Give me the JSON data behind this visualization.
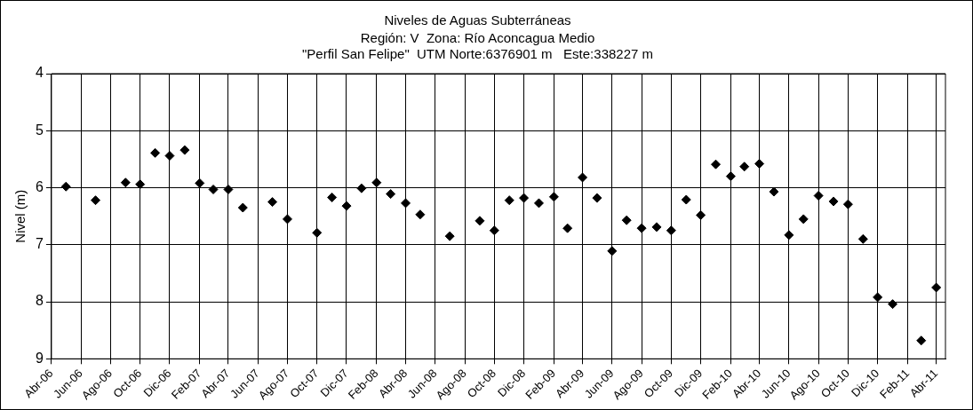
{
  "chart_data": {
    "type": "scatter",
    "title": "Niveles de Aguas Subterráneas",
    "subtitle": "Región: V  Zona: Río Aconcagua Medio\n\"Perfil San Felipe\"  UTM Norte:6376901 m   Este:338227 m",
    "ylabel": "Nivel (m)",
    "x": [
      "2006-05",
      "2006-07",
      "2006-09",
      "2006-10",
      "2006-11",
      "2006-12",
      "2007-01",
      "2007-02",
      "2007-03",
      "2007-04",
      "2007-05",
      "2007-07",
      "2007-08",
      "2007-10",
      "2007-11",
      "2007-12",
      "2008-01",
      "2008-02",
      "2008-03",
      "2008-04",
      "2008-05",
      "2008-07",
      "2008-09",
      "2008-10",
      "2008-11",
      "2008-12",
      "2009-01",
      "2009-02",
      "2009-03",
      "2009-04",
      "2009-05",
      "2009-06",
      "2009-07",
      "2009-08",
      "2009-09",
      "2009-10",
      "2009-11",
      "2009-12",
      "2010-01",
      "2010-02",
      "2010-03",
      "2010-04",
      "2010-05",
      "2010-06",
      "2010-07",
      "2010-08",
      "2010-09",
      "2010-10",
      "2010-11",
      "2010-12",
      "2011-01",
      "2011-03",
      "2011-04"
    ],
    "values": [
      5.98,
      6.22,
      5.91,
      5.94,
      5.39,
      5.44,
      5.34,
      5.92,
      6.03,
      6.03,
      6.35,
      6.25,
      6.55,
      6.79,
      6.17,
      6.32,
      6.01,
      5.91,
      6.11,
      6.27,
      6.47,
      6.85,
      6.58,
      6.75,
      6.22,
      6.18,
      6.27,
      6.16,
      6.71,
      5.82,
      6.18,
      7.11,
      6.57,
      6.71,
      6.69,
      6.75,
      6.21,
      6.48,
      5.59,
      5.8,
      5.63,
      5.58,
      6.07,
      6.83,
      6.55,
      6.14,
      6.24,
      6.29,
      6.9,
      7.92,
      8.04,
      8.68,
      7.75
    ],
    "color": "#000000",
    "marker": "diamond",
    "grid": true,
    "legend": false,
    "xlim": [
      "2006-04-01",
      "2011-04-20"
    ],
    "xticks": [
      {
        "value": "2006-04",
        "label": "Abr-06"
      },
      {
        "value": "2006-06",
        "label": "Jun-06"
      },
      {
        "value": "2006-08",
        "label": "Ago-06"
      },
      {
        "value": "2006-10",
        "label": "Oct-06"
      },
      {
        "value": "2006-12",
        "label": "Dic-06"
      },
      {
        "value": "2007-02",
        "label": "Feb-07"
      },
      {
        "value": "2007-04",
        "label": "Abr-07"
      },
      {
        "value": "2007-06",
        "label": "Jun-07"
      },
      {
        "value": "2007-08",
        "label": "Ago-07"
      },
      {
        "value": "2007-10",
        "label": "Oct-07"
      },
      {
        "value": "2007-12",
        "label": "Dic-07"
      },
      {
        "value": "2008-02",
        "label": "Feb-08"
      },
      {
        "value": "2008-04",
        "label": "Abr-08"
      },
      {
        "value": "2008-06",
        "label": "Jun-08"
      },
      {
        "value": "2008-08",
        "label": "Ago-08"
      },
      {
        "value": "2008-10",
        "label": "Oct-08"
      },
      {
        "value": "2008-12",
        "label": "Dic-08"
      },
      {
        "value": "2009-02",
        "label": "Feb-09"
      },
      {
        "value": "2009-04",
        "label": "Abr-09"
      },
      {
        "value": "2009-06",
        "label": "Jun-09"
      },
      {
        "value": "2009-08",
        "label": "Ago-09"
      },
      {
        "value": "2009-10",
        "label": "Oct-09"
      },
      {
        "value": "2009-12",
        "label": "Dic-09"
      },
      {
        "value": "2010-02",
        "label": "Feb-10"
      },
      {
        "value": "2010-04",
        "label": "Abr-10"
      },
      {
        "value": "2010-06",
        "label": "Jun-10"
      },
      {
        "value": "2010-08",
        "label": "Ago-10"
      },
      {
        "value": "2010-10",
        "label": "Oct-10"
      },
      {
        "value": "2010-12",
        "label": "Dic-10"
      },
      {
        "value": "2011-02",
        "label": "Feb-11"
      },
      {
        "value": "2011-04",
        "label": "Abr-11"
      }
    ],
    "ylim": [
      9,
      4
    ],
    "yticks": [
      4,
      5,
      6,
      7,
      8,
      9
    ]
  }
}
